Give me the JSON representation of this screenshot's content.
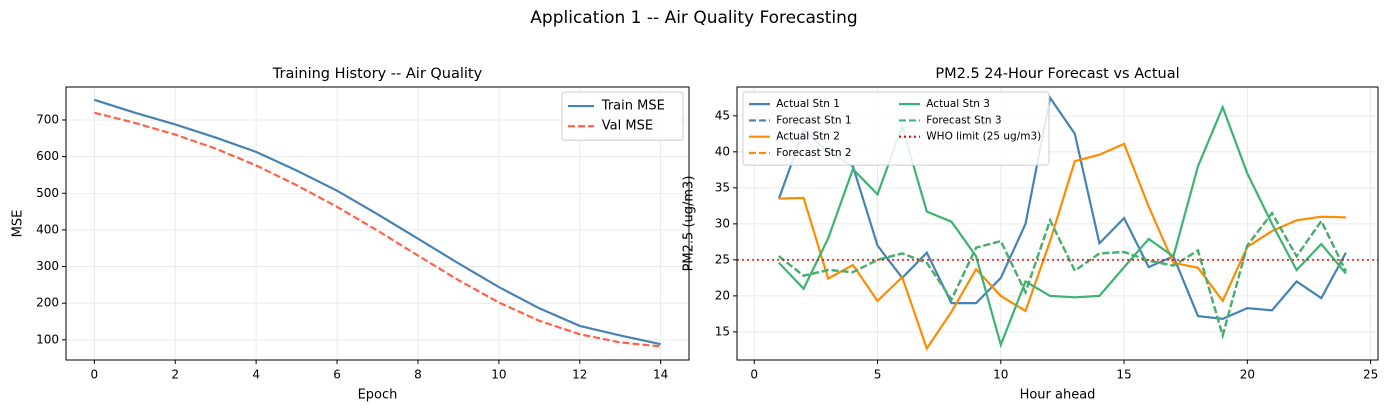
{
  "title": "Application 1 -- Air Quality Forecasting",
  "chart_data": [
    {
      "type": "line",
      "title": "Training History -- Air Quality",
      "x_label": "Epoch",
      "y_label": "MSE",
      "x": [
        0,
        1,
        2,
        3,
        4,
        5,
        6,
        7,
        8,
        9,
        10,
        11,
        12,
        13,
        14
      ],
      "xlim": [
        -0.7,
        14.7
      ],
      "xticks": [
        0,
        2,
        4,
        6,
        8,
        10,
        12,
        14
      ],
      "ylim": [
        45,
        790
      ],
      "yticks": [
        100,
        200,
        300,
        400,
        500,
        600,
        700
      ],
      "grid": true,
      "legend": "upper right",
      "legend_columns": 1,
      "series": [
        {
          "name": "Train MSE",
          "color": "#4682b4",
          "linestyle": "solid",
          "values": [
            755,
            720,
            688,
            652,
            613,
            562,
            507,
            443,
            376,
            309,
            244,
            186,
            138,
            112,
            88
          ]
        },
        {
          "name": "Val MSE",
          "color": "#ff6347",
          "linestyle": "dashed",
          "values": [
            720,
            692,
            660,
            622,
            576,
            522,
            463,
            398,
            330,
            263,
            202,
            152,
            115,
            93,
            82
          ]
        }
      ]
    },
    {
      "type": "line",
      "title": "PM2.5 24-Hour Forecast vs Actual",
      "x_label": "Hour ahead",
      "y_label": "PM2.5 (ug/m3)",
      "x": [
        1,
        2,
        3,
        4,
        5,
        6,
        7,
        8,
        9,
        10,
        11,
        12,
        13,
        14,
        15,
        16,
        17,
        18,
        19,
        20,
        21,
        22,
        23,
        24
      ],
      "xlim": [
        -0.7,
        25.3
      ],
      "xticks": [
        0,
        5,
        10,
        15,
        20,
        25
      ],
      "ylim": [
        11.1,
        49
      ],
      "yticks": [
        15,
        20,
        25,
        30,
        35,
        40,
        45
      ],
      "grid": true,
      "legend": "upper left",
      "legend_columns": 2,
      "series": [
        {
          "name": "Actual Stn 1",
          "color": "#4682b4",
          "linestyle": "solid",
          "values": [
            33.5,
            43,
            40,
            38,
            27,
            22.5,
            26,
            19,
            19,
            22.5,
            30,
            47.5,
            42.5,
            27.3,
            30.8,
            24,
            25.5,
            17.2,
            16.8,
            18.3,
            18,
            22,
            19.7,
            26
          ]
        },
        {
          "name": "Forecast Stn 1",
          "color": "#4682b4",
          "linestyle": "dashed",
          "values": [
            25.5,
            22.8,
            23.6,
            23.3,
            25,
            25.9,
            24.6,
            19.5,
            26.7,
            27.6,
            20.5,
            30.5,
            23.5,
            25.9,
            26.1,
            24.9,
            24.2,
            26.3,
            14.5,
            27,
            31.5,
            25.5,
            30.4,
            23.4
          ]
        },
        {
          "name": "Actual Stn 2",
          "color": "#ff8c00",
          "linestyle": "solid",
          "values": [
            33.5,
            33.6,
            22.4,
            24.3,
            19.3,
            22.6,
            12.7,
            17.8,
            23.7,
            20,
            17.9,
            27.6,
            38.7,
            39.6,
            41.1,
            32.4,
            24.6,
            23.9,
            19.3,
            26.8,
            29,
            30.5,
            31,
            30.9
          ]
        },
        {
          "name": "Forecast Stn 2",
          "color": "#ff8c00",
          "linestyle": "dashed",
          "values": [
            25.5,
            22.8,
            23.6,
            23.3,
            25,
            25.9,
            24.6,
            19.5,
            26.7,
            27.6,
            20.5,
            30.5,
            23.5,
            25.9,
            26.1,
            24.9,
            24.2,
            26.3,
            14.5,
            27,
            31.5,
            25.5,
            30.4,
            23.4
          ]
        },
        {
          "name": "Actual Stn 3",
          "color": "#3cb371",
          "linestyle": "solid",
          "values": [
            24.6,
            21,
            28,
            37.6,
            34.1,
            43.5,
            31.7,
            30.3,
            25.5,
            13.2,
            22,
            20,
            19.8,
            20,
            24,
            27.9,
            25.5,
            38,
            46.2,
            37,
            30,
            23.6,
            27.2,
            23.1
          ]
        },
        {
          "name": "Forecast Stn 3",
          "color": "#3cb371",
          "linestyle": "dashed",
          "values": [
            25.5,
            22.8,
            23.6,
            23.3,
            25,
            25.9,
            24.6,
            19.5,
            26.7,
            27.6,
            20.5,
            30.5,
            23.5,
            25.9,
            26.1,
            24.9,
            24.2,
            26.3,
            14.5,
            27,
            31.5,
            25.5,
            30.4,
            23.4
          ]
        }
      ],
      "hline": {
        "name": "WHO limit (25 ug/m3)",
        "value": 25,
        "color": "#ff0000",
        "linestyle": "dotted"
      }
    }
  ]
}
